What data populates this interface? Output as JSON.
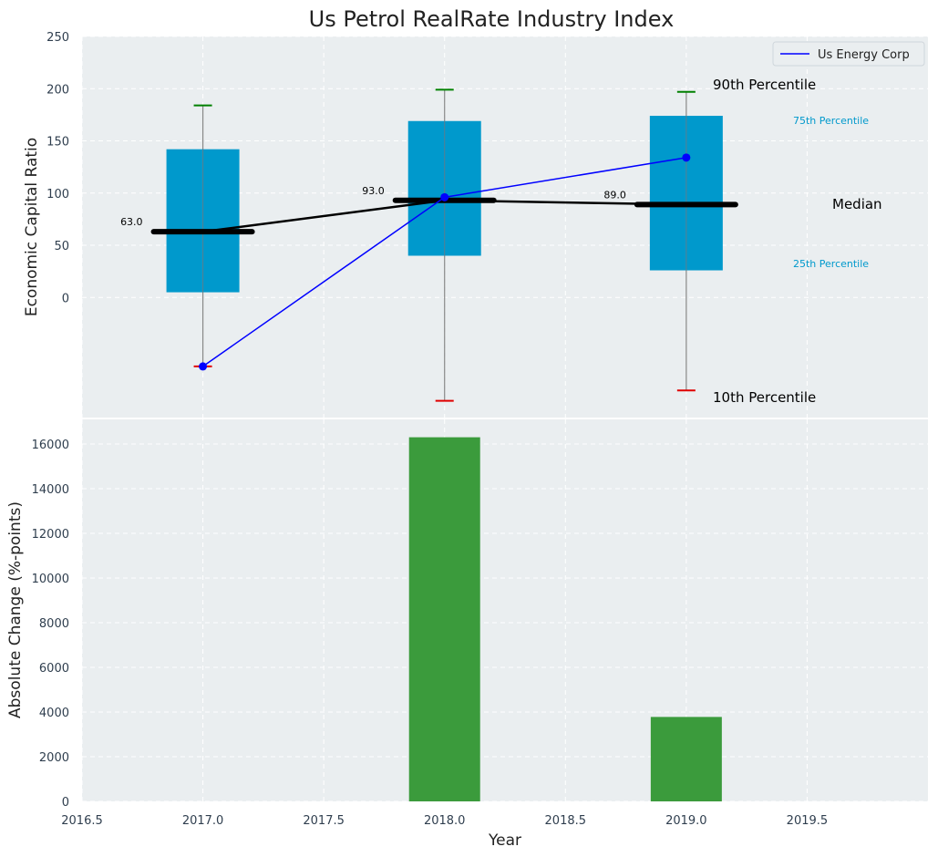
{
  "chart_data": [
    {
      "type": "box",
      "title": "Us Petrol RealRate Industry Index",
      "ylabel": "Economic Capital Ratio",
      "ylim": [
        -115,
        250
      ],
      "yticks": [
        0,
        50,
        100,
        150,
        200,
        250
      ],
      "xlim": [
        2016.5,
        2020.0
      ],
      "boxes": [
        {
          "year": 2017,
          "p10": -66,
          "p25": 5,
          "median": 63,
          "p75": 142,
          "p90": 184,
          "median_label": "63.0"
        },
        {
          "year": 2018,
          "p10": -99,
          "p25": 40,
          "median": 93,
          "p75": 169,
          "p90": 199,
          "median_label": "93.0"
        },
        {
          "year": 2019,
          "p10": -89,
          "p25": 26,
          "median": 89,
          "p75": 174,
          "p90": 197,
          "median_label": "89.0"
        }
      ],
      "series": [
        {
          "name": "Us Energy Corp",
          "color": "#0000ff",
          "x": [
            2017,
            2018,
            2019
          ],
          "values": [
            -66,
            96,
            134
          ]
        }
      ],
      "annotations": {
        "p90": "90th Percentile",
        "p75": "75th Percentile",
        "median": "Median",
        "p25": "25th Percentile",
        "p10": "10th Percentile"
      },
      "colors": {
        "box": "#0099cc",
        "median": "#000000",
        "p90_cap": "#008000",
        "p10_cap": "#e00000",
        "background": "#eaeef0"
      },
      "legend_position": "top-right"
    },
    {
      "type": "bar",
      "xlabel": "Year",
      "ylabel": "Absolute Change (%-points)",
      "x": [
        2018,
        2019
      ],
      "values": [
        16300,
        3780
      ],
      "ylim": [
        0,
        17100
      ],
      "yticks": [
        0,
        2000,
        4000,
        6000,
        8000,
        10000,
        12000,
        14000,
        16000
      ],
      "xticks": [
        "2016.5",
        "2017.0",
        "2017.5",
        "2018.0",
        "2018.5",
        "2019.0",
        "2019.5"
      ],
      "xlim": [
        2016.5,
        2020.0
      ],
      "color": "#3b9b3c"
    }
  ]
}
